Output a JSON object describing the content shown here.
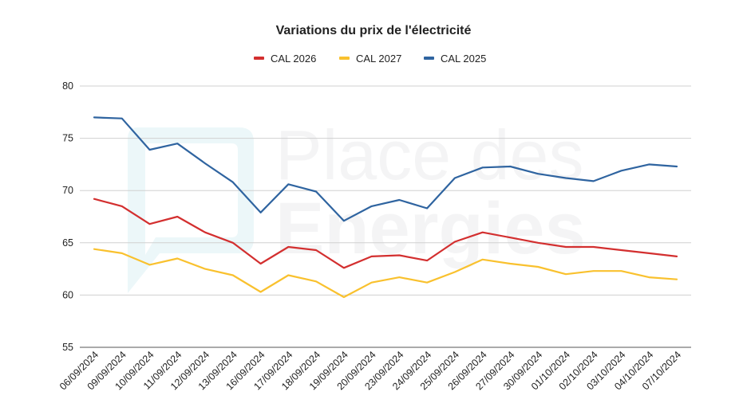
{
  "watermark": {
    "line1": "Place des",
    "line2": "Energies"
  },
  "chart_data": {
    "type": "line",
    "title": "Variations du prix de l'électricité",
    "xlabel": "",
    "ylabel": "",
    "ylim": [
      55,
      80
    ],
    "yticks": [
      55,
      60,
      65,
      70,
      75,
      80
    ],
    "grid": true,
    "legend_position": "top",
    "categories": [
      "06/09/2024",
      "09/09/2024",
      "10/09/2024",
      "11/09/2024",
      "12/09/2024",
      "13/09/2024",
      "16/09/2024",
      "17/09/2024",
      "18/09/2024",
      "19/09/2024",
      "20/09/2024",
      "23/09/2024",
      "24/09/2024",
      "25/09/2024",
      "26/09/2024",
      "27/09/2024",
      "30/09/2024",
      "01/10/2024",
      "02/10/2024",
      "03/10/2024",
      "04/10/2024",
      "07/10/2024"
    ],
    "series": [
      {
        "name": "CAL 2026",
        "color": "#d32f2f",
        "values": [
          69.2,
          68.5,
          66.8,
          67.5,
          66.0,
          65.0,
          63.0,
          64.6,
          64.3,
          62.6,
          63.7,
          63.8,
          63.3,
          65.1,
          66.0,
          65.5,
          65.0,
          64.6,
          64.6,
          64.3,
          64.0,
          63.7
        ]
      },
      {
        "name": "CAL 2027",
        "color": "#f9c12e",
        "values": [
          64.4,
          64.0,
          62.9,
          63.5,
          62.5,
          61.9,
          60.3,
          61.9,
          61.3,
          59.8,
          61.2,
          61.7,
          61.2,
          62.2,
          63.4,
          63.0,
          62.7,
          62.0,
          62.3,
          62.3,
          61.7,
          61.5
        ]
      },
      {
        "name": "CAL 2025",
        "color": "#2f64a0",
        "values": [
          77.0,
          76.9,
          73.9,
          74.5,
          72.6,
          70.8,
          67.9,
          70.6,
          69.9,
          67.1,
          68.5,
          69.1,
          68.3,
          71.2,
          72.2,
          72.3,
          71.6,
          71.2,
          70.9,
          71.9,
          72.5,
          72.3
        ]
      }
    ]
  }
}
